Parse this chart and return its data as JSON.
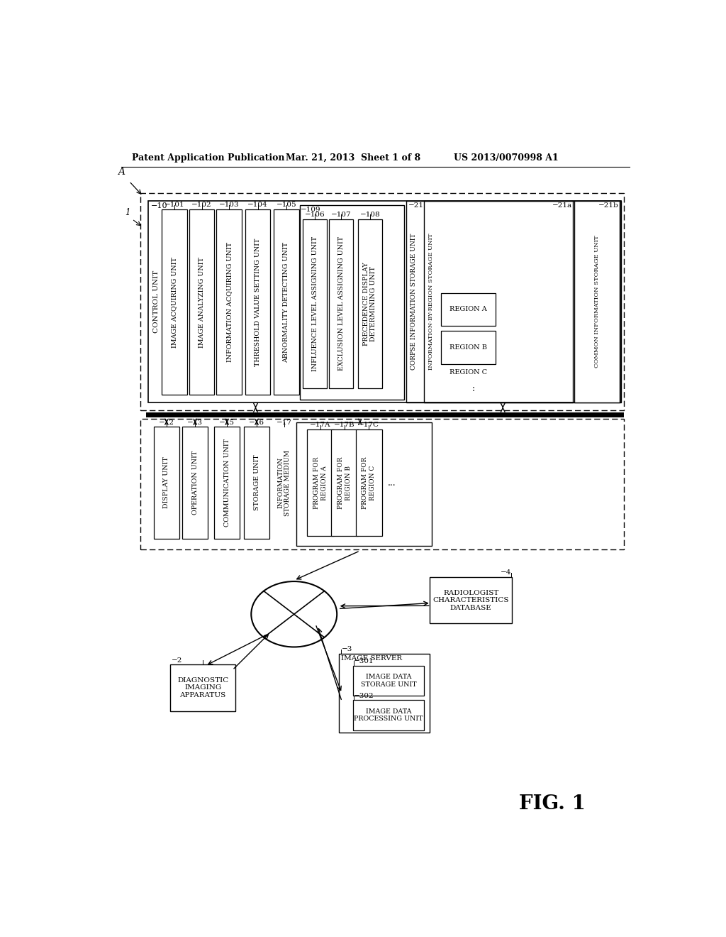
{
  "title_left": "Patent Application Publication",
  "title_mid": "Mar. 21, 2013  Sheet 1 of 8",
  "title_right": "US 2013/0070998 A1",
  "fig_label": "FIG. 1",
  "bg_color": "#ffffff",
  "line_color": "#000000",
  "text_color": "#000000"
}
